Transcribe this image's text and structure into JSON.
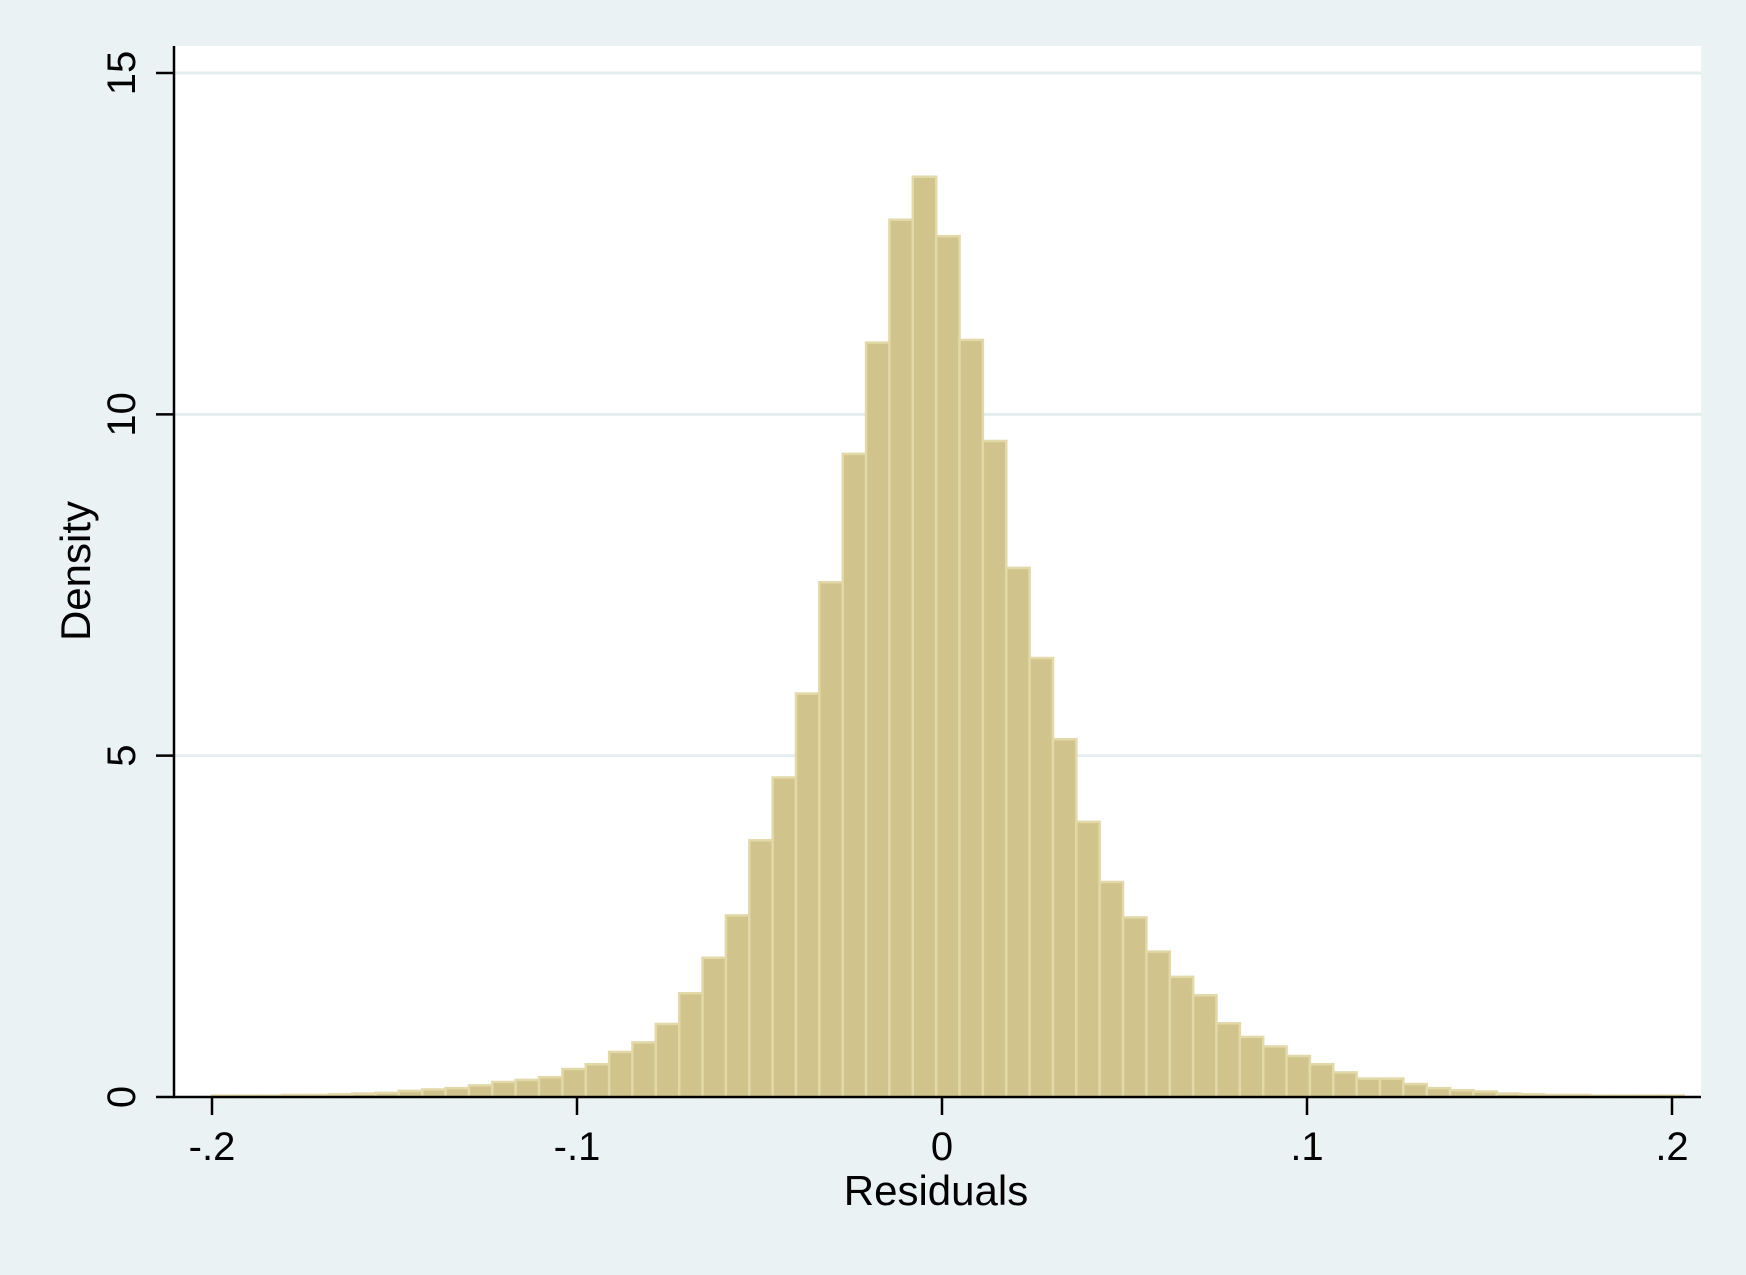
{
  "chart_data": {
    "type": "bar",
    "title": "",
    "xlabel": "Residuals",
    "ylabel": "Density",
    "xlim": [
      -0.2,
      0.2
    ],
    "ylim": [
      0,
      15
    ],
    "xticks": [
      -0.2,
      -0.1,
      0,
      0.1,
      0.2
    ],
    "xtick_labels": [
      "-.2",
      "-.1",
      "0",
      ".1",
      ".2"
    ],
    "yticks": [
      0,
      5,
      10,
      15
    ],
    "ytick_labels": [
      "0",
      "5",
      "10",
      "15"
    ],
    "grid": "horizontal",
    "bin_width": 0.0064,
    "bin_start": -0.2,
    "values": [
      0.02,
      0.02,
      0.02,
      0.03,
      0.03,
      0.04,
      0.05,
      0.06,
      0.09,
      0.11,
      0.13,
      0.17,
      0.22,
      0.25,
      0.29,
      0.41,
      0.48,
      0.66,
      0.8,
      1.07,
      1.52,
      2.04,
      2.66,
      3.76,
      4.68,
      5.91,
      7.54,
      9.42,
      11.05,
      12.85,
      13.48,
      12.61,
      11.09,
      9.61,
      7.75,
      6.43,
      5.24,
      4.03,
      3.15,
      2.63,
      2.13,
      1.76,
      1.49,
      1.08,
      0.88,
      0.74,
      0.6,
      0.48,
      0.36,
      0.27,
      0.27,
      0.19,
      0.13,
      0.1,
      0.08,
      0.05,
      0.04,
      0.03,
      0.03,
      0.02,
      0.02,
      0.02,
      0.02
    ],
    "colors": {
      "background": "#eaf2f3",
      "plot_background": "#ffffff",
      "bar_fill": "#d0c48c",
      "bar_edge": "#e2d8a8",
      "grid": "#e4eeee",
      "axis": "#000000"
    }
  }
}
